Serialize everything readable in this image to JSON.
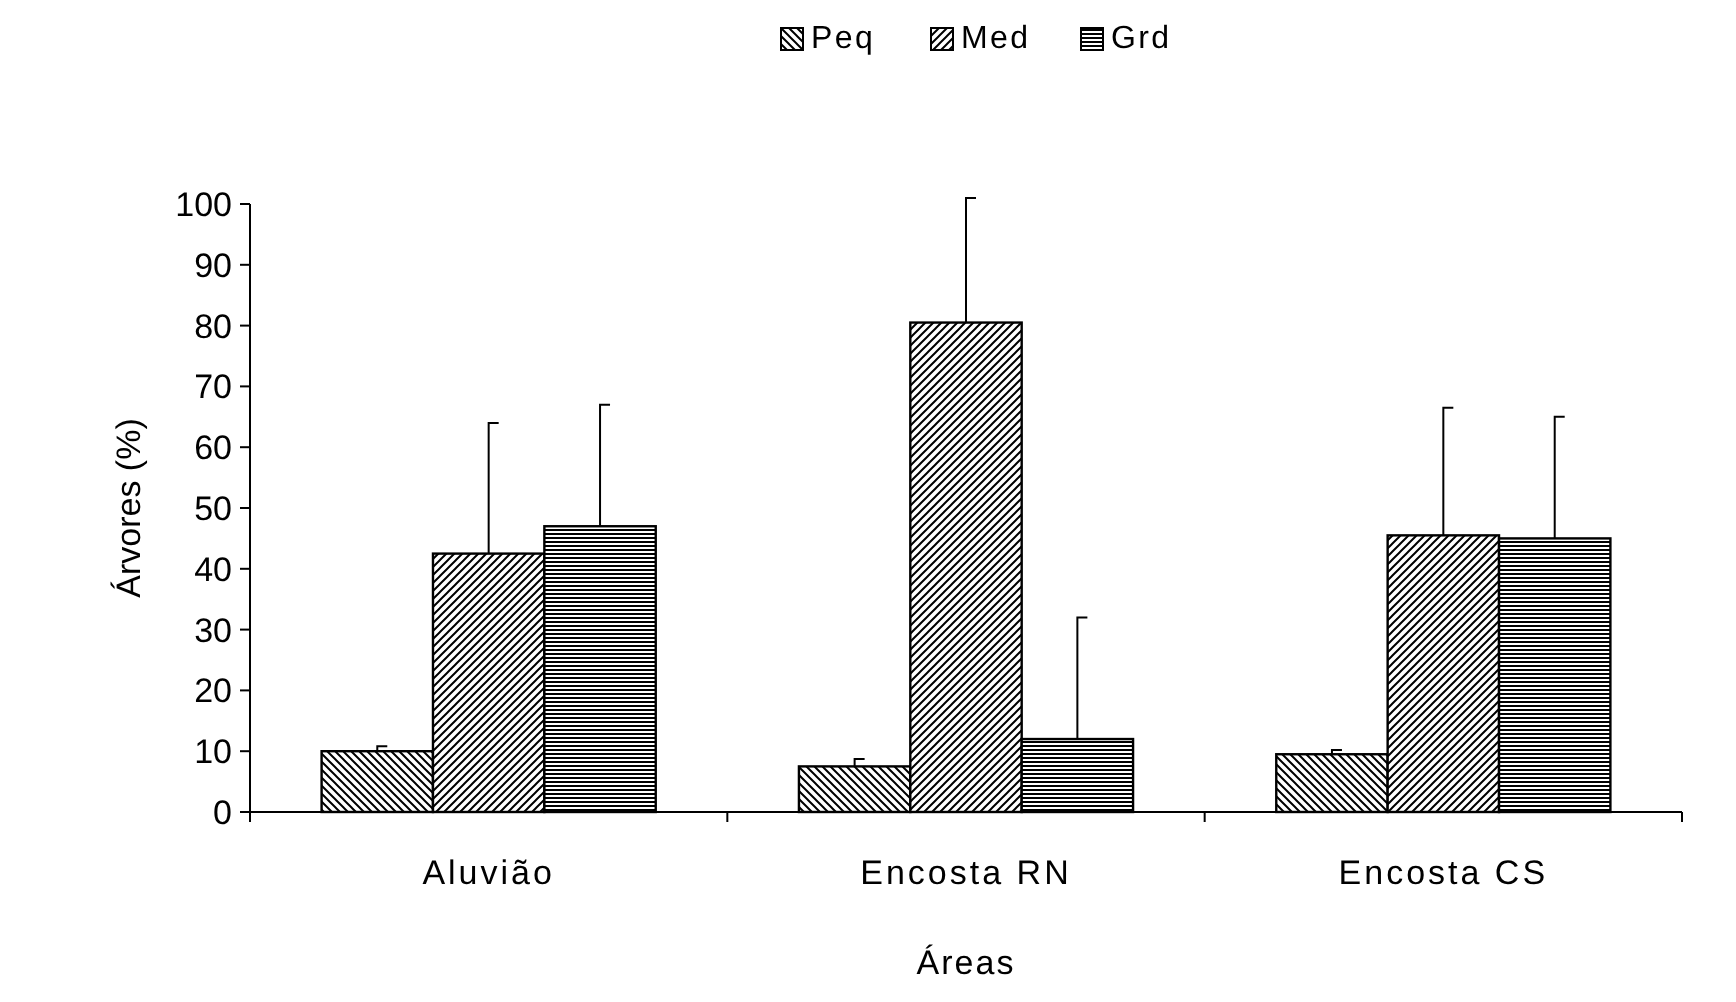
{
  "chart_data": {
    "type": "bar",
    "xlabel": "Áreas",
    "ylabel": "Árvores (%)",
    "categories": [
      "Aluvião",
      "Encosta RN",
      "Encosta CS"
    ],
    "series": [
      {
        "name": "Peq",
        "color": "#000000",
        "values": [
          10,
          7.5,
          9.5
        ],
        "errors": [
          [
            10,
            10.8
          ],
          [
            7.5,
            8.7
          ],
          [
            9.5,
            10.2
          ]
        ]
      },
      {
        "name": "Med",
        "color": "#000000",
        "values": [
          42.5,
          80.5,
          45.5
        ],
        "errors": [
          [
            42.5,
            64
          ],
          [
            80.5,
            101
          ],
          [
            45.5,
            66.5
          ]
        ]
      },
      {
        "name": "Grd",
        "color": "#000000",
        "values": [
          47,
          12,
          45
        ],
        "errors": [
          [
            47,
            67
          ],
          [
            12,
            32
          ],
          [
            45,
            65
          ]
        ]
      }
    ],
    "ylim": [
      0,
      100
    ],
    "yticks": [
      0,
      10,
      20,
      30,
      40,
      50,
      60,
      70,
      80,
      90,
      100
    ],
    "grid": false,
    "legend": "top"
  }
}
